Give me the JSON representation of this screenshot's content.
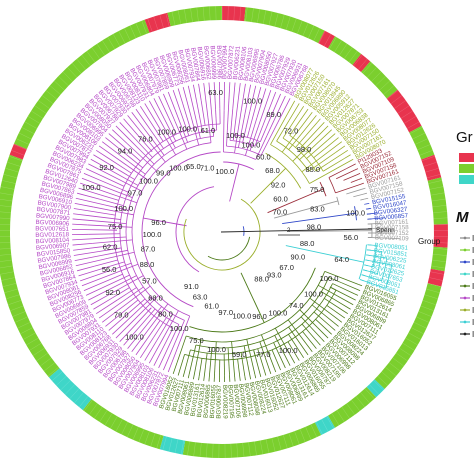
{
  "colors": {
    "ring_green": "#7bcf2e",
    "ring_red": "#e8344e",
    "ring_cyan": "#3fd6c8",
    "clade_magenta": "#b548c6",
    "clade_olive": "#9aae2a",
    "clade_darkred": "#9b2d3a",
    "clade_blue": "#2f47c9",
    "clade_gray": "#9a9a9a",
    "clade_cyan": "#3ccfd4",
    "clade_darkgreen": "#4c7a18",
    "outgroup": "#222222"
  },
  "legend": {
    "group_title_partial": "Gr",
    "marker_title_partial": "M",
    "group_swatches": [
      "#e8344e",
      "#7bcf2e",
      "#3fd6c8"
    ],
    "marker_items": [
      {
        "color": "#888888",
        "text": "I"
      },
      {
        "color": "#7bcf2e",
        "text": "I"
      },
      {
        "color": "#2f47c9",
        "text": "I"
      },
      {
        "color": "#3fd6c8",
        "text": "I"
      },
      {
        "color": "#4c7a18",
        "text": "I"
      },
      {
        "color": "#b548c6",
        "text": "I"
      },
      {
        "color": "#9aae2a",
        "text": "I"
      },
      {
        "color": "#3ccfd4",
        "text": "I"
      },
      {
        "color": "#222222",
        "text": "I"
      }
    ]
  },
  "tree": {
    "outgroup_label": "Spenn",
    "group_label": "Group",
    "scale_label": "2",
    "tip_labels_blue": [
      "BGV015155",
      "BGV016047",
      "BGV006327",
      "BGV006857",
      "BGV015156",
      "BGV006542",
      "BGV006585"
    ],
    "tip_labels_cyan": [
      "BGV008051",
      "BGV015851",
      "BGV006225",
      "BGV008061",
      "BGV012625",
      "BGV007653"
    ],
    "tip_labels_darkgreen": [
      "BGV016055",
      "BGV006865",
      "BGV012614",
      "BGV013161",
      "BGV006899",
      "BGV008061",
      "BGV007111",
      "BGV012627",
      "BGV016052",
      "BGV016013",
      "BGV008224",
      "BGV008098",
      "BGV007112",
      "BGV006998",
      "BGV007106",
      "BGV007195",
      "BGV008219",
      "BGV006787"
    ],
    "tip_labels_magenta": [
      "BGV007994",
      "BGV007872",
      "BGV006231",
      "BGV008106",
      "BGV008103",
      "BGV006995",
      "BGV007904",
      "BGV008050",
      "BGV007927",
      "BGV006786",
      "BGV007929",
      "BGV007930",
      "BGV006931",
      "BGV006768",
      "BGV008123",
      "BGV008110",
      "BGV007931",
      "BGV006804",
      "BGV007979",
      "BGV007981",
      "BGV007859",
      "BGV006909",
      "BGV006773",
      "BGV008256",
      "BGV008061",
      "BGV007934",
      "BGV007864",
      "BGV006916",
      "BGV006852",
      "BGV006999",
      "BGV007986",
      "BGV015850",
      "BGV006907",
      "BGV008104",
      "BGV012618",
      "BGV007651",
      "BGV006906",
      "BGV007990",
      "BGV007871",
      "BGV007900",
      "BGV006910",
      "BGV006896",
      "BGV007863",
      "BGV007989",
      "BGV012640",
      "BGV007861",
      "BGV007875",
      "BGV006234",
      "BGV007983"
    ],
    "tip_labels_olive": [
      "BGV008077",
      "BGV012626",
      "BGV007150",
      "BGV007161",
      "BGV008070",
      "BGV013945",
      "BGV006890",
      "BGV005912",
      "BGV012627",
      "BGV007871",
      "BGV006753",
      "BGV006838"
    ],
    "tip_labels_darkred": [
      "PI129033",
      "BGV007152",
      "BGV007109",
      "BGV007158",
      "BGV007161",
      "BGV012602"
    ],
    "tip_labels_gray": [
      "BGV007161",
      "BGV007158",
      "BGV007152",
      "BGV007109"
    ],
    "bootstrap_values": [
      "100.0",
      "100.0",
      "100.0",
      "100.0",
      "89.0",
      "60.0",
      "72.0",
      "68.0",
      "98.0",
      "92.0",
      "85.0",
      "60.0",
      "75.0",
      "70.0",
      "83.0",
      "100.0",
      "98.0",
      "56.0",
      "88.0",
      "64.0",
      "90.0",
      "100.0",
      "67.0",
      "100.0",
      "93.0",
      "74.0",
      "88.0",
      "100.0",
      "100.0",
      "96.0",
      "77.0",
      "100.0",
      "59.0",
      "97.0",
      "100.0",
      "61.0",
      "75.0",
      "63.0",
      "100.0",
      "91.0",
      "80.0",
      "100.0",
      "68.0",
      "79.0",
      "57.0",
      "92.0",
      "88.0",
      "56.0",
      "87.0",
      "62.0",
      "100.0",
      "75.0",
      "96.0",
      "100.0",
      "100.0",
      "97.0",
      "92.0",
      "100.0",
      "94.0",
      "99.0",
      "76.0",
      "100.0",
      "100.0",
      "65.0",
      "100.0",
      "71.0",
      "61.0",
      "63.0"
    ]
  }
}
